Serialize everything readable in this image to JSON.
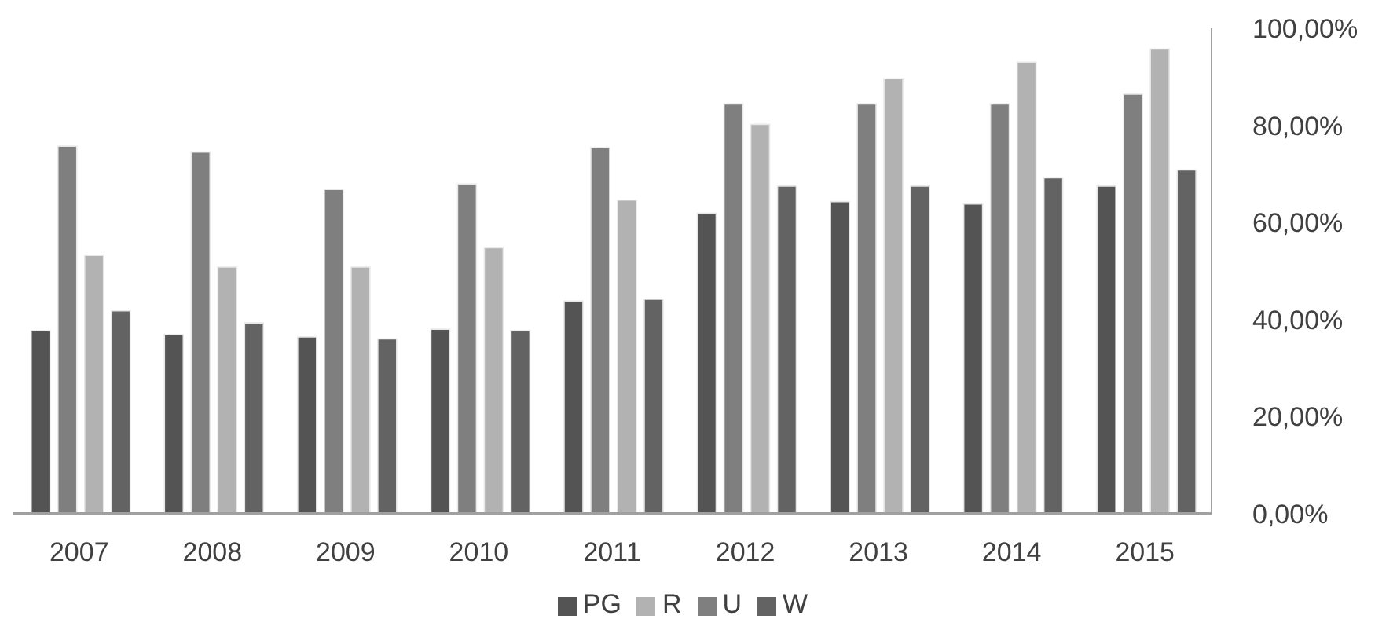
{
  "chart_data": {
    "type": "bar",
    "categories": [
      "2007",
      "2008",
      "2009",
      "2010",
      "2011",
      "2012",
      "2013",
      "2014",
      "2015"
    ],
    "series": [
      {
        "name": "PG",
        "color": "#545454",
        "values": [
          37.7,
          36.9,
          36.4,
          38.0,
          43.8,
          61.9,
          64.3,
          63.8,
          67.5
        ]
      },
      {
        "name": "U",
        "color": "#7f7f7f",
        "values": [
          75.7,
          74.5,
          66.8,
          67.9,
          75.4,
          84.4,
          84.4,
          84.4,
          86.4
        ]
      },
      {
        "name": "R",
        "color": "#b2b2b2",
        "values": [
          53.2,
          50.8,
          50.8,
          54.8,
          64.6,
          80.2,
          89.6,
          93.0,
          95.7
        ]
      },
      {
        "name": "W",
        "color": "#636363",
        "values": [
          41.8,
          39.3,
          36.0,
          37.7,
          44.2,
          67.5,
          67.5,
          69.2,
          70.8
        ]
      }
    ],
    "ylim": [
      0,
      100
    ],
    "yticks": [
      {
        "value": 0,
        "label": "0,00%"
      },
      {
        "value": 20,
        "label": "20,00%"
      },
      {
        "value": 40,
        "label": "40,00%"
      },
      {
        "value": 60,
        "label": "60,00%"
      },
      {
        "value": 80,
        "label": "80,00%"
      },
      {
        "value": 100,
        "label": "100,00%"
      }
    ],
    "grid": false,
    "legend": "bottom"
  }
}
